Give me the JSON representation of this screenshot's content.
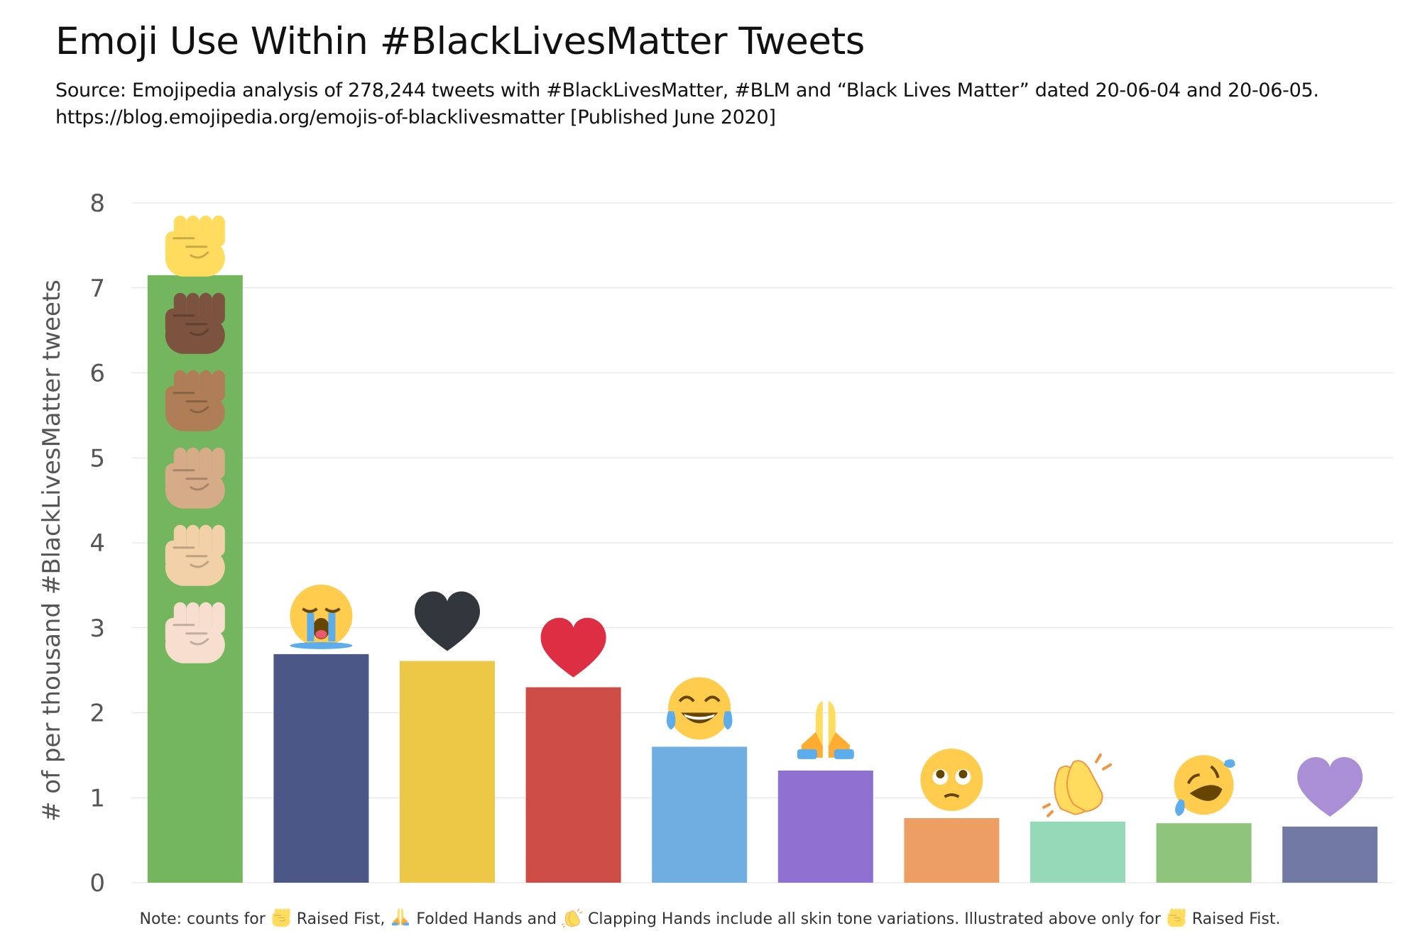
{
  "title": "Emoji Use Within #BlackLivesMatter Tweets",
  "subtitle_line1": "Source: Emojipedia analysis of 278,244 tweets with #BlackLivesMatter, #BLM and “Black Lives Matter” dated 20-06-04 and 20-06-05.",
  "subtitle_line2": "https://blog.emojipedia.org/emojis-of-blacklivesmatter [Published June 2020]",
  "note": {
    "part1": "Note: counts for ",
    "icon1": "raised-fist-icon",
    "part2": " Raised Fist, ",
    "icon2": "folded-hands-icon",
    "part3": " Folded Hands and ",
    "icon3": "clapping-hands-icon",
    "part4": " Clapping Hands include all skin tone variations. Illustrated above only for ",
    "icon4": "raised-fist-icon",
    "part5": " Raised Fist."
  },
  "chart_data": {
    "type": "bar",
    "ylabel": "# of per thousand #BlackLivesMatter tweets",
    "ylim": [
      0,
      8
    ],
    "yticks": [
      "0",
      "1",
      "2",
      "3",
      "4",
      "5",
      "6",
      "7",
      "8"
    ],
    "grid": true,
    "categories": [
      "raised-fist",
      "loudly-crying-face",
      "black-heart",
      "red-heart",
      "face-with-tears-of-joy",
      "folded-hands",
      "pleading-face",
      "clapping-hands",
      "rolling-on-the-floor-laughing",
      "purple-heart"
    ],
    "values": [
      7.15,
      2.69,
      2.61,
      2.3,
      1.6,
      1.32,
      0.76,
      0.72,
      0.7,
      0.66
    ],
    "colors": [
      "#74b65e",
      "#4b5887",
      "#ecc846",
      "#cd4c46",
      "#70ade0",
      "#8d70cf",
      "#ec9e63",
      "#96d9b9",
      "#8fc47b",
      "#6f79a4"
    ],
    "raised_fist_skin_tones": [
      "#ffdc5d",
      "#7c533e",
      "#af7e57",
      "#d5ab88",
      "#f2d1a8",
      "#f7dece"
    ]
  }
}
